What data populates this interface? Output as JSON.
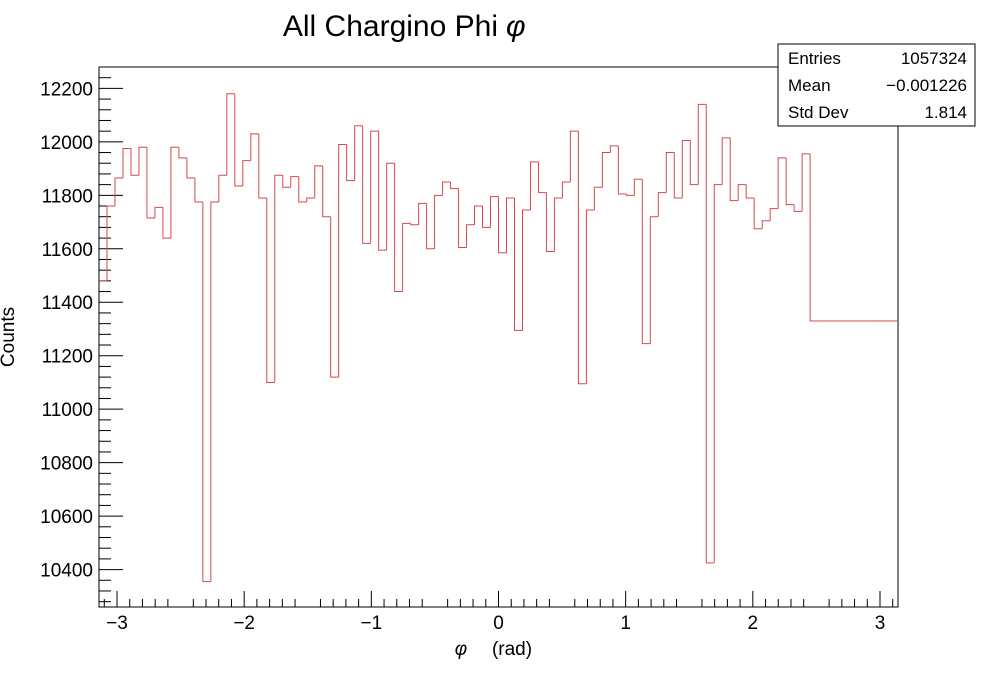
{
  "chart_data": {
    "type": "histogram",
    "title": "All Chargino Phi",
    "title_symbol": "φ",
    "xlabel_symbol": "φ",
    "xlabel": "(rad)",
    "ylabel": "Counts",
    "xlim": [
      -3.1416,
      3.1416
    ],
    "ylim": [
      10260,
      12280
    ],
    "xticks": [
      -3,
      -2,
      -1,
      0,
      1,
      2,
      3
    ],
    "xtick_labels": [
      "−3",
      "−2",
      "−1",
      "0",
      "1",
      "2",
      "3"
    ],
    "yticks": [
      10400,
      10600,
      10800,
      11000,
      11200,
      11400,
      11600,
      11800,
      12000,
      12200
    ],
    "ytick_labels": [
      "10400",
      "10600",
      "10800",
      "11000",
      "11200",
      "11400",
      "11600",
      "11800",
      "12000",
      "12200"
    ],
    "line_color": "#d24b4b",
    "grid": false,
    "bins": 100,
    "values": [
      11480,
      11760,
      11865,
      11975,
      11875,
      11980,
      11715,
      11755,
      11640,
      11980,
      11940,
      11865,
      11775,
      10355,
      11775,
      11875,
      12180,
      11835,
      11930,
      12030,
      11790,
      11100,
      11875,
      11830,
      11870,
      11775,
      11790,
      11910,
      11720,
      11120,
      11990,
      11855,
      12060,
      11620,
      12040,
      11595,
      11920,
      11440,
      11695,
      11690,
      11770,
      11600,
      11800,
      11850,
      11825,
      11605,
      11690,
      11760,
      11680,
      11795,
      11585,
      11790,
      11295,
      11745,
      11925,
      11810,
      11590,
      11790,
      11850,
      12040,
      11095,
      11745,
      11830,
      11960,
      11985,
      11805,
      11800,
      11860,
      11245,
      11720,
      11810,
      11960,
      11790,
      12005,
      11840,
      12140,
      10425,
      11840,
      12015,
      11780,
      11840,
      11790,
      11675,
      11705,
      11750,
      11940,
      11765,
      11740,
      11955,
      11330,
      11330,
      11330,
      11330,
      11330,
      11330,
      11330,
      11330,
      11330,
      11330,
      11330
    ]
  },
  "stats": {
    "rows": [
      {
        "label": "Entries",
        "value": "1057324"
      },
      {
        "label": "Mean",
        "value": "−0.001226"
      },
      {
        "label": "Std Dev",
        "value": "1.814"
      }
    ]
  }
}
